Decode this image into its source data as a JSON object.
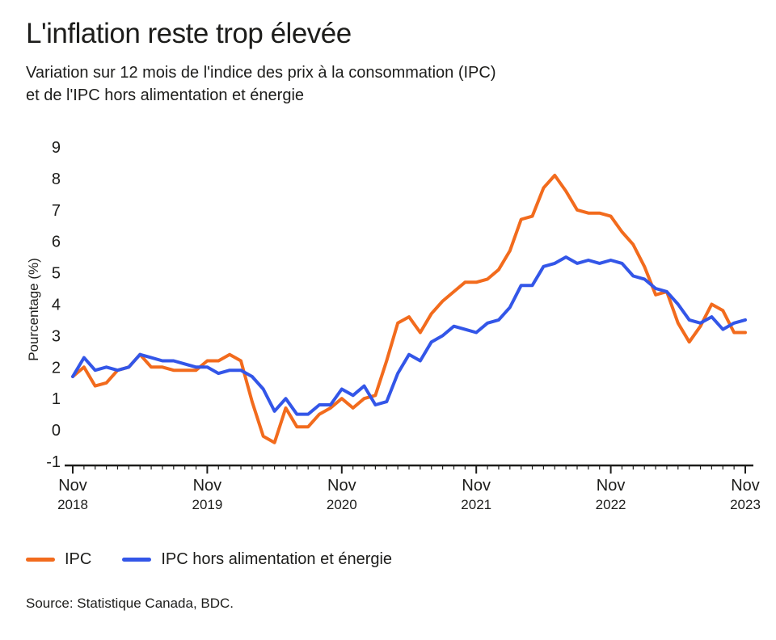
{
  "title": "L'inflation reste trop élevée",
  "subtitle_line1": "Variation sur 12 mois de l'indice des prix à la consommation (IPC)",
  "subtitle_line2": "et de l'IPC hors alimentation et énergie",
  "source": "Source: Statistique Canada, BDC.",
  "colors": {
    "ipc": "#f26b1d",
    "core": "#3356e8",
    "axis": "#1d1d1b",
    "grid": "#d9d9d9"
  },
  "chart_data": {
    "type": "line",
    "title": "L'inflation reste trop élevée",
    "ylabel": "Pourcentage (%)",
    "xlabel": "",
    "ylim": [
      -1,
      9
    ],
    "yticks": [
      -1,
      0,
      1,
      2,
      3,
      4,
      5,
      6,
      7,
      8,
      9
    ],
    "x_start": "2018-11",
    "x_end": "2023-12",
    "xticks": [
      {
        "month": "Nov",
        "year": "2018"
      },
      {
        "month": "Nov",
        "year": "2019"
      },
      {
        "month": "Nov",
        "year": "2020"
      },
      {
        "month": "Nov",
        "year": "2021"
      },
      {
        "month": "Nov",
        "year": "2022"
      },
      {
        "month": "Nov",
        "year": "2023"
      }
    ],
    "grid": false,
    "legend": "bottom-left",
    "series": [
      {
        "name": "IPC",
        "color": "#f26b1d",
        "values": [
          1.7,
          2.0,
          1.4,
          1.5,
          1.9,
          2.0,
          2.4,
          2.0,
          2.0,
          1.9,
          1.9,
          1.9,
          2.2,
          2.2,
          2.4,
          2.2,
          0.9,
          -0.2,
          -0.4,
          0.7,
          0.1,
          0.1,
          0.5,
          0.7,
          1.0,
          0.7,
          1.0,
          1.1,
          2.2,
          3.4,
          3.6,
          3.1,
          3.7,
          4.1,
          4.4,
          4.7,
          4.7,
          4.8,
          5.1,
          5.7,
          6.7,
          6.8,
          7.7,
          8.1,
          7.6,
          7.0,
          6.9,
          6.9,
          6.8,
          6.3,
          5.9,
          5.2,
          4.3,
          4.4,
          3.4,
          2.8,
          3.3,
          4.0,
          3.8,
          3.1,
          3.1
        ],
        "x_start": "2018-11"
      },
      {
        "name": "IPC hors alimentation et énergie",
        "color": "#3356e8",
        "values": [
          1.7,
          2.3,
          1.9,
          2.0,
          1.9,
          2.0,
          2.4,
          2.3,
          2.2,
          2.2,
          2.1,
          2.0,
          2.0,
          1.8,
          1.9,
          1.9,
          1.7,
          1.3,
          0.6,
          1.0,
          0.5,
          0.5,
          0.8,
          0.8,
          1.3,
          1.1,
          1.4,
          0.8,
          0.9,
          1.8,
          2.4,
          2.2,
          2.8,
          3.0,
          3.3,
          3.2,
          3.1,
          3.4,
          3.5,
          3.9,
          4.6,
          4.6,
          5.2,
          5.3,
          5.5,
          5.3,
          5.4,
          5.3,
          5.4,
          5.3,
          4.9,
          4.8,
          4.5,
          4.4,
          4.0,
          3.5,
          3.4,
          3.6,
          3.2,
          3.4,
          3.5
        ],
        "x_start": "2018-11"
      }
    ]
  }
}
